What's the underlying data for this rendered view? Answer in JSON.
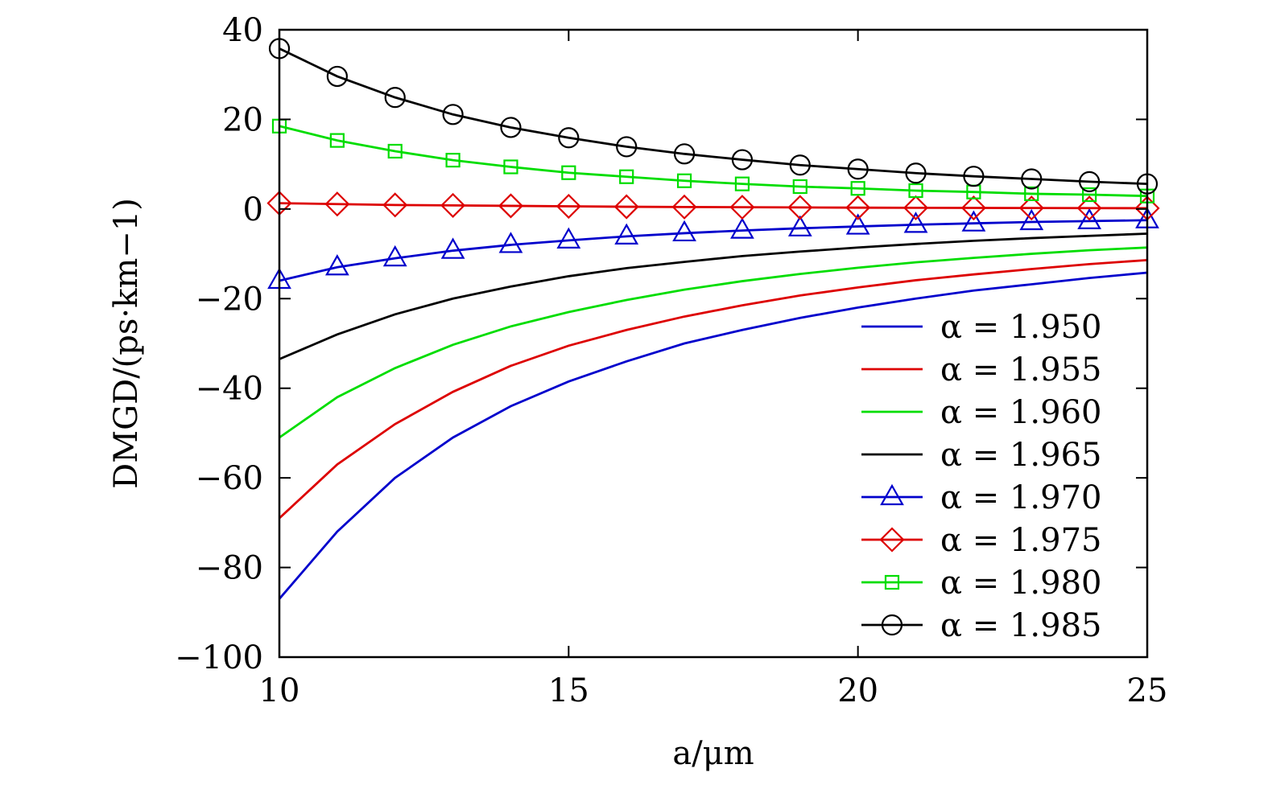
{
  "chart_data": {
    "type": "line",
    "title": "",
    "xlabel": "a/μm",
    "ylabel": "DMGD/(ps·km−1)",
    "xlim": [
      10,
      25
    ],
    "ylim": [
      -100,
      40
    ],
    "xticks": [
      10,
      15,
      20,
      25
    ],
    "xtick_labels": [
      "10",
      "15",
      "20",
      "25"
    ],
    "yticks": [
      40,
      20,
      0,
      -20,
      -40,
      -60,
      -80,
      -100
    ],
    "ytick_labels": [
      "40",
      "20",
      "0",
      "−20",
      "−40",
      "−60",
      "−80",
      "−100"
    ],
    "grid": false,
    "legend_position": "bottom-right",
    "x": [
      10,
      11,
      12,
      13,
      14,
      15,
      16,
      17,
      18,
      19,
      20,
      21,
      22,
      23,
      24,
      25
    ],
    "series": [
      {
        "name": "α = 1.950",
        "color": "#0000cc",
        "marker": "none",
        "values": [
          -87,
          -72,
          -60,
          -51,
          -44,
          -38.5,
          -34,
          -30,
          -27,
          -24.3,
          -22,
          -20,
          -18.2,
          -16.8,
          -15.4,
          -14.2
        ]
      },
      {
        "name": "α = 1.955",
        "color": "#dd0000",
        "marker": "none",
        "values": [
          -69,
          -57,
          -48,
          -40.8,
          -35,
          -30.5,
          -27,
          -24,
          -21.5,
          -19.3,
          -17.5,
          -15.9,
          -14.6,
          -13.4,
          -12.3,
          -11.4
        ]
      },
      {
        "name": "α = 1.960",
        "color": "#00dd00",
        "marker": "none",
        "values": [
          -51,
          -42,
          -35.5,
          -30.3,
          -26.2,
          -23,
          -20.3,
          -18,
          -16.1,
          -14.5,
          -13.1,
          -11.9,
          -10.9,
          -10,
          -9.2,
          -8.6
        ]
      },
      {
        "name": "α = 1.965",
        "color": "#000000",
        "marker": "none",
        "values": [
          -33.5,
          -28,
          -23.5,
          -20,
          -17.3,
          -15,
          -13.2,
          -11.8,
          -10.5,
          -9.5,
          -8.6,
          -7.8,
          -7.1,
          -6.5,
          -6,
          -5.5
        ]
      },
      {
        "name": "α = 1.970",
        "color": "#0000cc",
        "marker": "triangle",
        "values": [
          -16,
          -13,
          -11,
          -9.3,
          -8,
          -7,
          -6.1,
          -5.4,
          -4.8,
          -4.3,
          -3.9,
          -3.5,
          -3.2,
          -2.9,
          -2.7,
          -2.5
        ]
      },
      {
        "name": "α = 1.975",
        "color": "#dd0000",
        "marker": "diamond",
        "values": [
          1.3,
          1.1,
          0.9,
          0.8,
          0.7,
          0.6,
          0.5,
          0.45,
          0.4,
          0.35,
          0.3,
          0.27,
          0.24,
          0.22,
          0.2,
          0.18
        ]
      },
      {
        "name": "α = 1.980",
        "color": "#00dd00",
        "marker": "square",
        "values": [
          18.5,
          15.3,
          12.9,
          10.9,
          9.4,
          8.1,
          7.2,
          6.3,
          5.6,
          5,
          4.6,
          4.1,
          3.8,
          3.4,
          3.2,
          2.9
        ]
      },
      {
        "name": "α = 1.985",
        "color": "#000000",
        "marker": "circle",
        "values": [
          35.8,
          29.6,
          24.9,
          21.1,
          18.2,
          15.9,
          13.9,
          12.3,
          11,
          9.8,
          8.9,
          8,
          7.3,
          6.7,
          6.1,
          5.6
        ]
      }
    ]
  }
}
